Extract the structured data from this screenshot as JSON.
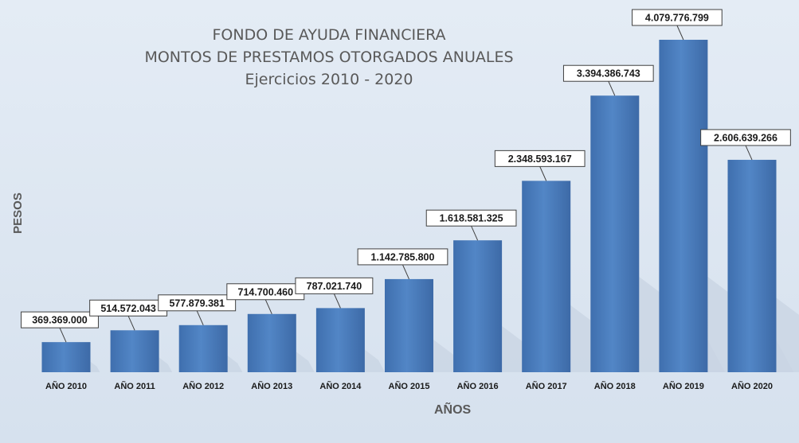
{
  "chart_data": {
    "type": "bar",
    "title": [
      "FONDO DE AYUDA FINANCIERA",
      "MONTOS DE PRESTAMOS OTORGADOS ANUALES",
      "Ejercicios 2010 - 2020"
    ],
    "xlabel": "AÑOS",
    "ylabel": "PESOS",
    "categories": [
      "AÑO 2010",
      "AÑO 2011",
      "AÑO 2012",
      "AÑO 2013",
      "AÑO 2014",
      "AÑO 2015",
      "AÑO 2016",
      "AÑO 2017",
      "AÑO 2018",
      "AÑO 2019",
      "AÑO 2020"
    ],
    "values": [
      369369000,
      514572043,
      577879381,
      714700460,
      787021740,
      1142785800,
      1618581325,
      2348593167,
      3394386743,
      4079776799,
      2606639266
    ],
    "value_labels": [
      "369.369.000",
      "514.572.043",
      "577.879.381",
      "714.700.460",
      "787.021.740",
      "1.142.785.800",
      "1.618.581.325",
      "2.348.593.167",
      "3.394.386.743",
      "4.079.776.799",
      "2.606.639.266"
    ],
    "ylim": [
      0,
      4079776799
    ],
    "grid": false,
    "legend": "none",
    "bar_color": "#4a7dbd"
  }
}
